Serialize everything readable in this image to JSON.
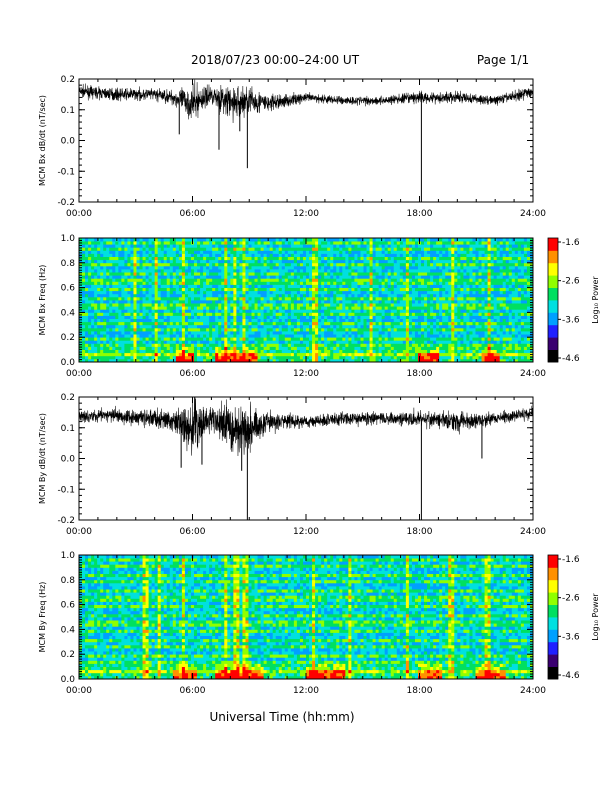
{
  "header": {
    "title": "2018/07/23  00:00–24:00 UT",
    "page": "Page 1/1"
  },
  "footer": {
    "xlabel": "Universal Time (hh:mm)"
  },
  "colorbar": {
    "label": "Log₁₀ Power",
    "colors": [
      "#000000",
      "#3a0070",
      "#2020ff",
      "#00a0ff",
      "#00e0e0",
      "#00e060",
      "#90ff00",
      "#ffff00",
      "#ff9000",
      "#ff0000"
    ],
    "ticks": [
      "-1.6",
      "-2.6",
      "-3.6",
      "-4.6"
    ]
  },
  "chart_data": [
    {
      "type": "line",
      "panel": "bx-timeseries",
      "ylabel": "MCM Bx dB/dt (nT/sec)",
      "ylim": [
        -0.2,
        0.2
      ],
      "yticks": [
        "0.2",
        "0.1",
        "0.0",
        "-0.1",
        "-0.2"
      ],
      "xlim_hours": [
        0,
        24
      ],
      "xticks": [
        "00:00",
        "06:00",
        "12:00",
        "18:00",
        "24:00"
      ],
      "baseline_hours": [
        0,
        2,
        4,
        5,
        6,
        7,
        8,
        9,
        10,
        12,
        14,
        16,
        18,
        20,
        22,
        24
      ],
      "baseline_values": [
        0.16,
        0.15,
        0.15,
        0.14,
        0.12,
        0.15,
        0.12,
        0.13,
        0.12,
        0.14,
        0.13,
        0.13,
        0.14,
        0.14,
        0.13,
        0.16
      ],
      "noise": [
        0.02,
        0.02,
        0.02,
        0.025,
        0.06,
        0.03,
        0.06,
        0.05,
        0.03,
        0.015,
        0.015,
        0.015,
        0.02,
        0.02,
        0.015,
        0.02
      ],
      "spikes": [
        {
          "hour": 5.3,
          "value": 0.02
        },
        {
          "hour": 7.4,
          "value": -0.03
        },
        {
          "hour": 8.5,
          "value": 0.03
        },
        {
          "hour": 8.9,
          "value": -0.09
        },
        {
          "hour": 18.1,
          "value": -0.2
        }
      ]
    },
    {
      "type": "heatmap",
      "panel": "bx-spectrogram",
      "ylabel": "MCM Bx Freq (Hz)",
      "ylim": [
        0.0,
        1.0
      ],
      "yticks": [
        "1.0",
        "0.8",
        "0.6",
        "0.4",
        "0.2",
        "0.0"
      ],
      "xlim_hours": [
        0,
        24
      ],
      "xticks": [
        "00:00",
        "06:00",
        "12:00",
        "18:00",
        "24:00"
      ],
      "zlim": [
        -4.6,
        -1.6
      ],
      "harmonic_freqs": [
        0.06,
        0.13,
        0.19,
        0.26,
        0.32,
        0.39,
        0.45,
        0.52,
        0.58,
        0.65,
        0.71,
        0.78,
        0.84,
        0.91,
        0.97
      ],
      "bursts_hours": [
        3.0,
        4.1,
        5.5,
        7.8,
        8.2,
        8.7,
        12.5,
        15.4,
        17.3,
        19.8,
        21.7
      ],
      "lowfreq_active_hours": [
        [
          5.2,
          6.0
        ],
        [
          7.2,
          9.5
        ],
        [
          18.0,
          19.0
        ],
        [
          21.3,
          22.3
        ]
      ]
    },
    {
      "type": "line",
      "panel": "by-timeseries",
      "ylabel": "MCM By dB/dt (nT/sec)",
      "ylim": [
        -0.2,
        0.2
      ],
      "yticks": [
        "0.2",
        "0.1",
        "0.0",
        "-0.1",
        "-0.2"
      ],
      "xlim_hours": [
        0,
        24
      ],
      "xticks": [
        "00:00",
        "06:00",
        "12:00",
        "18:00",
        "24:00"
      ],
      "baseline_hours": [
        0,
        2,
        4,
        5,
        6,
        7,
        8,
        9,
        10,
        12,
        14,
        16,
        18,
        20,
        22,
        24
      ],
      "baseline_values": [
        0.14,
        0.14,
        0.13,
        0.12,
        0.1,
        0.13,
        0.1,
        0.1,
        0.12,
        0.12,
        0.13,
        0.13,
        0.13,
        0.12,
        0.13,
        0.15
      ],
      "noise": [
        0.02,
        0.025,
        0.03,
        0.035,
        0.09,
        0.04,
        0.09,
        0.07,
        0.035,
        0.02,
        0.025,
        0.02,
        0.025,
        0.035,
        0.02,
        0.02
      ],
      "spikes": [
        {
          "hour": 5.4,
          "value": -0.03
        },
        {
          "hour": 6.5,
          "value": -0.02
        },
        {
          "hour": 8.6,
          "value": -0.04
        },
        {
          "hour": 8.9,
          "value": -0.2
        },
        {
          "hour": 18.1,
          "value": -0.2
        },
        {
          "hour": 21.3,
          "value": 0.0
        }
      ]
    },
    {
      "type": "heatmap",
      "panel": "by-spectrogram",
      "ylabel": "MCM By Freq (Hz)",
      "ylim": [
        0.0,
        1.0
      ],
      "yticks": [
        "1.0",
        "0.8",
        "0.6",
        "0.4",
        "0.2",
        "0.0"
      ],
      "xlim_hours": [
        0,
        24
      ],
      "xticks": [
        "00:00",
        "06:00",
        "12:00",
        "18:00",
        "24:00"
      ],
      "zlim": [
        -4.6,
        -1.6
      ],
      "harmonic_freqs": [
        0.06,
        0.13,
        0.19,
        0.26,
        0.32,
        0.39,
        0.45,
        0.52,
        0.58,
        0.65,
        0.71,
        0.78,
        0.84,
        0.91,
        0.97
      ],
      "bursts_hours": [
        3.5,
        4.2,
        5.5,
        7.7,
        8.3,
        8.8,
        12.4,
        14.3,
        17.4,
        19.7,
        21.6
      ],
      "lowfreq_active_hours": [
        [
          5.0,
          6.2
        ],
        [
          7.2,
          9.8
        ],
        [
          12.0,
          14.0
        ],
        [
          18.0,
          19.2
        ],
        [
          21.0,
          22.5
        ]
      ]
    }
  ]
}
